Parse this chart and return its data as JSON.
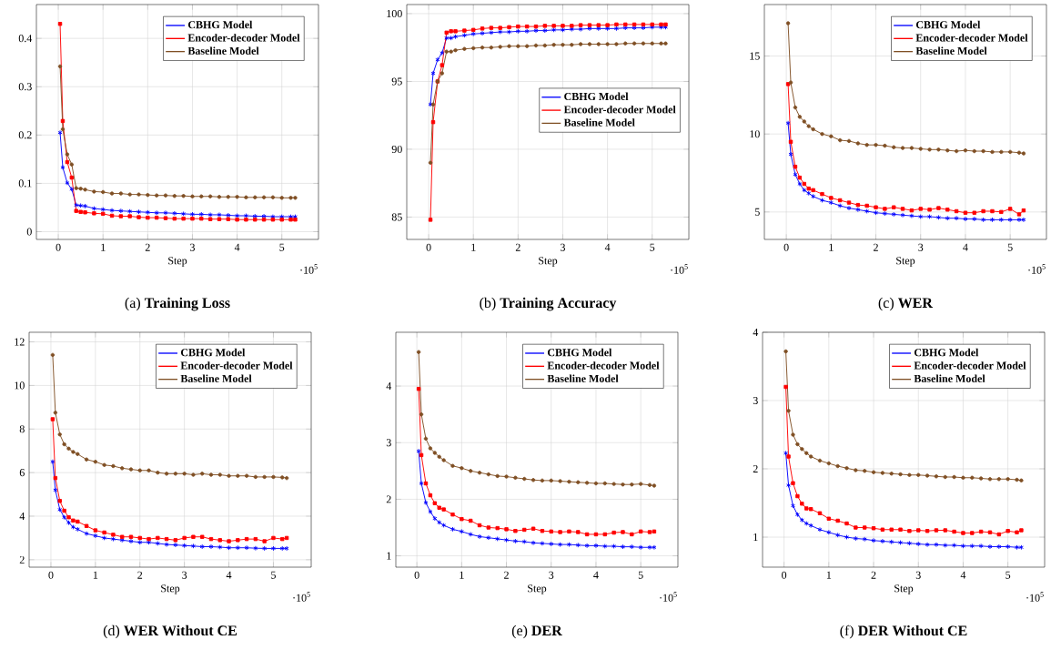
{
  "chart_data": [
    {
      "type": "line",
      "title": "(a) **Training Loss**",
      "xlabel": "Step",
      "annotations": [
        "·10$^{5}$"
      ],
      "legend": "top right",
      "grid": true,
      "x": [
        0.04,
        0.1,
        0.2,
        0.3,
        0.4,
        0.5,
        0.6,
        0.8,
        1.0,
        1.2,
        1.4,
        1.6,
        1.8,
        2.0,
        2.2,
        2.4,
        2.6,
        2.8,
        3.0,
        3.2,
        3.4,
        3.6,
        3.8,
        4.0,
        4.2,
        4.4,
        4.6,
        4.8,
        5.0,
        5.2,
        5.3
      ],
      "xlim": [
        -0.49,
        5.82
      ],
      "xticks": [
        0,
        1,
        2,
        3,
        4,
        5
      ],
      "ylim": [
        -0.016,
        0.47
      ],
      "yticks": [
        0,
        0.1,
        0.2,
        0.3,
        0.4
      ],
      "series": [
        {
          "name": "CBHG Model",
          "color": "#0000ff",
          "marker": "cross",
          "values": [
            0.205,
            0.133,
            0.101,
            0.088,
            0.055,
            0.054,
            0.053,
            0.048,
            0.046,
            0.044,
            0.043,
            0.042,
            0.041,
            0.04,
            0.039,
            0.039,
            0.038,
            0.037,
            0.036,
            0.036,
            0.035,
            0.035,
            0.034,
            0.033,
            0.033,
            0.032,
            0.032,
            0.031,
            0.031,
            0.031,
            0.031
          ]
        },
        {
          "name": "Encoder-decoder Model",
          "color": "#ff0000",
          "marker": "square",
          "values": [
            0.43,
            0.229,
            0.144,
            0.112,
            0.043,
            0.041,
            0.04,
            0.038,
            0.037,
            0.033,
            0.032,
            0.032,
            0.03,
            0.029,
            0.029,
            0.028,
            0.027,
            0.027,
            0.027,
            0.027,
            0.026,
            0.026,
            0.026,
            0.025,
            0.025,
            0.025,
            0.025,
            0.025,
            0.025,
            0.025,
            0.025
          ]
        },
        {
          "name": "Baseline Model",
          "color": "#7f4f24",
          "marker": "circle",
          "values": [
            0.342,
            0.212,
            0.16,
            0.139,
            0.09,
            0.089,
            0.087,
            0.083,
            0.082,
            0.079,
            0.079,
            0.077,
            0.077,
            0.076,
            0.075,
            0.075,
            0.074,
            0.074,
            0.073,
            0.073,
            0.073,
            0.072,
            0.072,
            0.072,
            0.071,
            0.071,
            0.071,
            0.071,
            0.07,
            0.07,
            0.07
          ]
        }
      ]
    },
    {
      "type": "line",
      "title": "(b) **Training Accuracy**",
      "xlabel": "Step",
      "annotations": [
        "·10$^{5}$"
      ],
      "legend": "right",
      "grid": true,
      "x": [
        0.04,
        0.1,
        0.2,
        0.3,
        0.4,
        0.5,
        0.6,
        0.8,
        1.0,
        1.2,
        1.4,
        1.6,
        1.8,
        2.0,
        2.2,
        2.4,
        2.6,
        2.8,
        3.0,
        3.2,
        3.4,
        3.6,
        3.8,
        4.0,
        4.2,
        4.4,
        4.6,
        4.8,
        5.0,
        5.2,
        5.3
      ],
      "xlim": [
        -0.49,
        5.82
      ],
      "xticks": [
        0,
        1,
        2,
        3,
        4,
        5
      ],
      "ylim": [
        83.35,
        100.67
      ],
      "yticks": [
        85,
        90,
        95,
        100
      ],
      "series": [
        {
          "name": "CBHG Model",
          "color": "#0000ff",
          "marker": "cross",
          "values": [
            93.3,
            95.6,
            96.6,
            97.1,
            98.2,
            98.2,
            98.3,
            98.4,
            98.5,
            98.55,
            98.6,
            98.65,
            98.65,
            98.7,
            98.7,
            98.75,
            98.75,
            98.8,
            98.8,
            98.85,
            98.85,
            98.9,
            98.9,
            98.9,
            98.9,
            98.95,
            98.95,
            98.95,
            99.0,
            99.0,
            99.0
          ]
        },
        {
          "name": "Encoder-decoder Model",
          "color": "#ff0000",
          "marker": "square",
          "values": [
            84.8,
            92.0,
            95.0,
            96.2,
            98.6,
            98.7,
            98.7,
            98.75,
            98.8,
            98.9,
            98.95,
            98.95,
            99.0,
            99.05,
            99.05,
            99.05,
            99.1,
            99.1,
            99.1,
            99.1,
            99.15,
            99.15,
            99.15,
            99.15,
            99.2,
            99.2,
            99.2,
            99.2,
            99.2,
            99.2,
            99.2
          ]
        },
        {
          "name": "Baseline Model",
          "color": "#7f4f24",
          "marker": "circle",
          "values": [
            89.0,
            93.3,
            95.0,
            95.6,
            97.2,
            97.2,
            97.3,
            97.4,
            97.45,
            97.5,
            97.5,
            97.55,
            97.6,
            97.6,
            97.6,
            97.65,
            97.65,
            97.7,
            97.7,
            97.7,
            97.75,
            97.75,
            97.75,
            97.75,
            97.75,
            97.8,
            97.8,
            97.8,
            97.8,
            97.8,
            97.8
          ]
        }
      ]
    },
    {
      "type": "line",
      "title": "(c) **WER**",
      "xlabel": "Step",
      "annotations": [
        "·10$^{5}$"
      ],
      "legend": "top right",
      "grid": true,
      "x": [
        0.04,
        0.1,
        0.2,
        0.3,
        0.4,
        0.5,
        0.6,
        0.8,
        1.0,
        1.2,
        1.4,
        1.6,
        1.8,
        2.0,
        2.2,
        2.4,
        2.6,
        2.8,
        3.0,
        3.2,
        3.4,
        3.6,
        3.8,
        4.0,
        4.2,
        4.4,
        4.6,
        4.8,
        5.0,
        5.2,
        5.3
      ],
      "xlim": [
        -0.49,
        5.81
      ],
      "xticks": [
        0,
        1,
        2,
        3,
        4,
        5
      ],
      "ylim": [
        3.24,
        18.3
      ],
      "yticks": [
        5,
        10,
        15
      ],
      "series": [
        {
          "name": "CBHG Model",
          "color": "#0000ff",
          "marker": "cross",
          "values": [
            10.7,
            8.7,
            7.4,
            6.8,
            6.4,
            6.2,
            6.0,
            5.75,
            5.6,
            5.4,
            5.25,
            5.15,
            5.05,
            4.95,
            4.9,
            4.85,
            4.8,
            4.75,
            4.7,
            4.7,
            4.65,
            4.6,
            4.6,
            4.55,
            4.55,
            4.5,
            4.5,
            4.5,
            4.5,
            4.5,
            4.5
          ]
        },
        {
          "name": "Encoder-decoder Model",
          "color": "#ff0000",
          "marker": "square",
          "values": [
            13.2,
            9.5,
            7.9,
            7.2,
            6.8,
            6.5,
            6.4,
            6.15,
            5.9,
            5.75,
            5.6,
            5.45,
            5.4,
            5.3,
            5.2,
            5.3,
            5.2,
            5.1,
            5.2,
            5.15,
            5.25,
            5.15,
            5.05,
            4.95,
            4.95,
            5.05,
            5.05,
            5.0,
            5.2,
            4.85,
            5.1
          ]
        },
        {
          "name": "Baseline Model",
          "color": "#7f4f24",
          "marker": "circle",
          "values": [
            17.1,
            13.3,
            11.7,
            11.1,
            10.8,
            10.5,
            10.3,
            10.0,
            9.85,
            9.6,
            9.55,
            9.4,
            9.3,
            9.3,
            9.25,
            9.15,
            9.1,
            9.1,
            9.05,
            9.0,
            9.0,
            8.95,
            8.9,
            8.95,
            8.9,
            8.9,
            8.85,
            8.85,
            8.85,
            8.8,
            8.75
          ]
        }
      ]
    },
    {
      "type": "line",
      "title": "(d) **WER Without CE**",
      "xlabel": "Step",
      "annotations": [
        "·10$^{5}$"
      ],
      "legend": "top right",
      "grid": true,
      "x": [
        0.04,
        0.1,
        0.2,
        0.3,
        0.4,
        0.5,
        0.6,
        0.8,
        1.0,
        1.2,
        1.4,
        1.6,
        1.8,
        2.0,
        2.2,
        2.4,
        2.6,
        2.8,
        3.0,
        3.2,
        3.4,
        3.6,
        3.8,
        4.0,
        4.2,
        4.4,
        4.6,
        4.8,
        5.0,
        5.2,
        5.3
      ],
      "xlim": [
        -0.49,
        5.85
      ],
      "xticks": [
        0,
        1,
        2,
        3,
        4,
        5
      ],
      "ylim": [
        1.66,
        12.44
      ],
      "yticks": [
        2,
        4,
        6,
        8,
        10,
        12
      ],
      "series": [
        {
          "name": "CBHG Model",
          "color": "#0000ff",
          "marker": "cross",
          "values": [
            6.5,
            5.2,
            4.3,
            3.95,
            3.7,
            3.5,
            3.4,
            3.2,
            3.1,
            3.0,
            2.95,
            2.9,
            2.85,
            2.8,
            2.8,
            2.75,
            2.7,
            2.68,
            2.65,
            2.63,
            2.6,
            2.6,
            2.58,
            2.55,
            2.55,
            2.55,
            2.53,
            2.52,
            2.52,
            2.52,
            2.52
          ]
        },
        {
          "name": "Encoder-decoder Model",
          "color": "#ff0000",
          "marker": "square",
          "values": [
            8.45,
            5.75,
            4.7,
            4.25,
            3.95,
            3.8,
            3.75,
            3.55,
            3.35,
            3.25,
            3.15,
            3.05,
            3.05,
            3.0,
            2.95,
            3.0,
            2.95,
            2.9,
            3.0,
            3.05,
            3.05,
            2.95,
            2.9,
            2.85,
            2.9,
            2.95,
            2.95,
            2.85,
            3.0,
            2.95,
            3.0
          ]
        },
        {
          "name": "Baseline Model",
          "color": "#7f4f24",
          "marker": "circle",
          "values": [
            11.4,
            8.75,
            7.75,
            7.3,
            7.1,
            6.95,
            6.85,
            6.6,
            6.5,
            6.35,
            6.3,
            6.2,
            6.15,
            6.1,
            6.1,
            6.0,
            5.95,
            5.95,
            5.95,
            5.9,
            5.95,
            5.9,
            5.9,
            5.85,
            5.85,
            5.85,
            5.8,
            5.8,
            5.8,
            5.78,
            5.75
          ]
        }
      ]
    },
    {
      "type": "line",
      "title": "(e) **DER**",
      "xlabel": "Step",
      "annotations": [
        "·10$^{5}$"
      ],
      "legend": "top right",
      "grid": true,
      "x": [
        0.04,
        0.1,
        0.2,
        0.3,
        0.4,
        0.5,
        0.6,
        0.8,
        1.0,
        1.2,
        1.4,
        1.6,
        1.8,
        2.0,
        2.2,
        2.4,
        2.6,
        2.8,
        3.0,
        3.2,
        3.4,
        3.6,
        3.8,
        4.0,
        4.2,
        4.4,
        4.6,
        4.8,
        5.0,
        5.2,
        5.3
      ],
      "xlim": [
        -0.47,
        5.83
      ],
      "xticks": [
        0,
        1,
        2,
        3,
        4,
        5
      ],
      "ylim": [
        0.8,
        4.95
      ],
      "yticks": [
        1,
        2,
        3,
        4
      ],
      "series": [
        {
          "name": "CBHG Model",
          "color": "#0000ff",
          "marker": "cross",
          "values": [
            2.85,
            2.28,
            1.94,
            1.78,
            1.66,
            1.59,
            1.54,
            1.47,
            1.43,
            1.38,
            1.34,
            1.32,
            1.3,
            1.28,
            1.26,
            1.25,
            1.23,
            1.22,
            1.21,
            1.2,
            1.2,
            1.19,
            1.18,
            1.18,
            1.17,
            1.17,
            1.16,
            1.16,
            1.15,
            1.15,
            1.15
          ]
        },
        {
          "name": "Encoder-decoder Model",
          "color": "#ff0000",
          "marker": "square",
          "values": [
            3.95,
            2.78,
            2.28,
            2.07,
            1.93,
            1.85,
            1.82,
            1.73,
            1.65,
            1.62,
            1.54,
            1.5,
            1.49,
            1.47,
            1.44,
            1.46,
            1.48,
            1.44,
            1.43,
            1.42,
            1.43,
            1.42,
            1.38,
            1.38,
            1.38,
            1.41,
            1.42,
            1.38,
            1.43,
            1.42,
            1.43
          ]
        },
        {
          "name": "Baseline Model",
          "color": "#7f4f24",
          "marker": "circle",
          "values": [
            4.6,
            3.5,
            3.07,
            2.9,
            2.82,
            2.75,
            2.69,
            2.59,
            2.55,
            2.5,
            2.47,
            2.44,
            2.41,
            2.4,
            2.38,
            2.36,
            2.34,
            2.33,
            2.33,
            2.32,
            2.31,
            2.3,
            2.29,
            2.28,
            2.28,
            2.27,
            2.26,
            2.26,
            2.27,
            2.25,
            2.24
          ]
        }
      ]
    },
    {
      "type": "line",
      "title": "(f) **DER Without CE**",
      "xlabel": "Step",
      "annotations": [
        "·10$^{5}$"
      ],
      "legend": "top right",
      "grid": true,
      "x": [
        0.04,
        0.1,
        0.2,
        0.3,
        0.4,
        0.5,
        0.6,
        0.8,
        1.0,
        1.2,
        1.4,
        1.6,
        1.8,
        2.0,
        2.2,
        2.4,
        2.6,
        2.8,
        3.0,
        3.2,
        3.4,
        3.6,
        3.8,
        4.0,
        4.2,
        4.4,
        4.6,
        4.8,
        5.0,
        5.2,
        5.3
      ],
      "xlim": [
        -0.48,
        5.82
      ],
      "xticks": [
        0,
        1,
        2,
        3,
        4,
        5
      ],
      "ylim": [
        0.56,
        4.0
      ],
      "yticks": [
        1,
        2,
        3,
        4
      ],
      "series": [
        {
          "name": "CBHG Model",
          "color": "#0000ff",
          "marker": "cross",
          "values": [
            2.23,
            1.76,
            1.46,
            1.33,
            1.25,
            1.2,
            1.17,
            1.11,
            1.07,
            1.03,
            1.0,
            0.98,
            0.97,
            0.95,
            0.94,
            0.93,
            0.92,
            0.91,
            0.9,
            0.89,
            0.89,
            0.88,
            0.88,
            0.87,
            0.87,
            0.87,
            0.86,
            0.86,
            0.86,
            0.85,
            0.85
          ]
        },
        {
          "name": "Encoder-decoder Model",
          "color": "#ff0000",
          "marker": "square",
          "values": [
            3.2,
            2.18,
            1.79,
            1.6,
            1.49,
            1.42,
            1.41,
            1.35,
            1.27,
            1.24,
            1.2,
            1.14,
            1.14,
            1.13,
            1.11,
            1.11,
            1.11,
            1.09,
            1.1,
            1.09,
            1.1,
            1.1,
            1.08,
            1.06,
            1.06,
            1.08,
            1.07,
            1.04,
            1.09,
            1.07,
            1.1
          ]
        },
        {
          "name": "Baseline Model",
          "color": "#7f4f24",
          "marker": "circle",
          "values": [
            3.72,
            2.85,
            2.5,
            2.36,
            2.29,
            2.23,
            2.18,
            2.12,
            2.08,
            2.04,
            2.01,
            1.98,
            1.97,
            1.95,
            1.94,
            1.93,
            1.92,
            1.91,
            1.91,
            1.9,
            1.89,
            1.88,
            1.88,
            1.87,
            1.87,
            1.86,
            1.85,
            1.85,
            1.85,
            1.84,
            1.83
          ]
        }
      ]
    }
  ]
}
